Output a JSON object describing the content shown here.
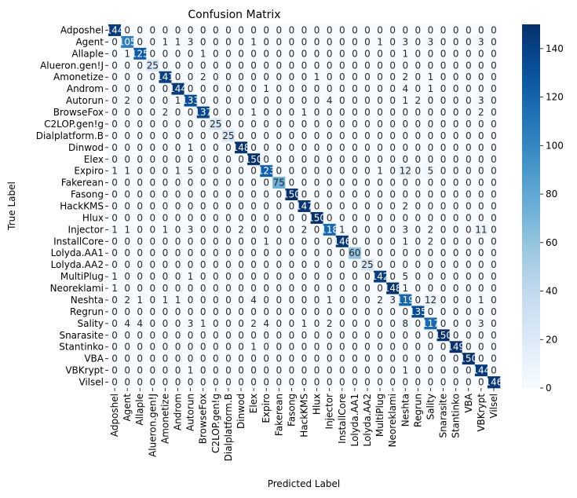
{
  "chart_data": {
    "type": "heatmap",
    "title": "Confusion Matrix",
    "xlabel": "Predicted Label",
    "ylabel": "True Label",
    "labels": [
      "Adposhel",
      "Agent",
      "Allaple",
      "Alueron.gen!J",
      "Amonetize",
      "Androm",
      "Autorun",
      "BrowseFox",
      "C2LOP.gen!g",
      "Dialplatform.B",
      "Dinwod",
      "Elex",
      "Expiro",
      "Fakerean",
      "Fasong",
      "HackKMS",
      "Hlux",
      "Injector",
      "InstallCore",
      "Lolyda.AA1",
      "Lolyda.AA2",
      "MultiPlug",
      "Neoreklami",
      "Neshta",
      "Regrun",
      "Sality",
      "Snarasite",
      "Stantinko",
      "VBA",
      "VBKrypt",
      "Vilsel"
    ],
    "matrix": [
      [
        144,
        0,
        0,
        0,
        0,
        0,
        0,
        0,
        0,
        0,
        0,
        0,
        0,
        0,
        0,
        0,
        0,
        0,
        0,
        0,
        0,
        0,
        0,
        0,
        0,
        0,
        0,
        0,
        0,
        0,
        0
      ],
      [
        0,
        105,
        0,
        0,
        1,
        1,
        3,
        0,
        0,
        0,
        0,
        1,
        0,
        0,
        0,
        0,
        0,
        0,
        0,
        0,
        0,
        1,
        0,
        3,
        0,
        3,
        0,
        0,
        0,
        3,
        0
      ],
      [
        0,
        1,
        125,
        0,
        0,
        0,
        0,
        1,
        0,
        0,
        0,
        0,
        0,
        0,
        0,
        0,
        0,
        0,
        0,
        0,
        0,
        0,
        0,
        1,
        0,
        0,
        0,
        0,
        0,
        0,
        0
      ],
      [
        0,
        0,
        0,
        25,
        0,
        0,
        0,
        0,
        0,
        0,
        0,
        0,
        0,
        0,
        0,
        0,
        0,
        0,
        0,
        0,
        0,
        0,
        0,
        0,
        0,
        0,
        0,
        0,
        0,
        0,
        0
      ],
      [
        0,
        0,
        0,
        0,
        141,
        0,
        0,
        2,
        0,
        0,
        0,
        0,
        0,
        0,
        0,
        0,
        1,
        0,
        0,
        0,
        0,
        0,
        0,
        2,
        0,
        1,
        0,
        0,
        0,
        0,
        0
      ],
      [
        0,
        0,
        0,
        0,
        0,
        144,
        0,
        0,
        0,
        0,
        0,
        0,
        1,
        0,
        0,
        0,
        0,
        0,
        0,
        0,
        0,
        0,
        0,
        4,
        0,
        1,
        0,
        0,
        0,
        0,
        0
      ],
      [
        0,
        2,
        0,
        0,
        0,
        1,
        133,
        0,
        0,
        0,
        0,
        0,
        0,
        0,
        0,
        0,
        0,
        4,
        0,
        0,
        0,
        0,
        0,
        1,
        2,
        0,
        0,
        0,
        0,
        3,
        0
      ],
      [
        0,
        0,
        0,
        0,
        2,
        0,
        0,
        137,
        0,
        0,
        0,
        1,
        0,
        0,
        0,
        1,
        0,
        0,
        0,
        0,
        0,
        0,
        0,
        0,
        0,
        0,
        0,
        0,
        0,
        2,
        0
      ],
      [
        0,
        0,
        0,
        0,
        0,
        0,
        0,
        0,
        25,
        0,
        0,
        0,
        0,
        0,
        0,
        0,
        0,
        0,
        0,
        0,
        0,
        0,
        0,
        0,
        0,
        0,
        0,
        0,
        0,
        0,
        0
      ],
      [
        0,
        0,
        0,
        0,
        0,
        0,
        0,
        0,
        0,
        25,
        0,
        0,
        0,
        0,
        0,
        0,
        0,
        0,
        0,
        0,
        0,
        0,
        0,
        0,
        0,
        0,
        0,
        0,
        0,
        0,
        0
      ],
      [
        0,
        0,
        0,
        0,
        0,
        0,
        1,
        0,
        0,
        0,
        148,
        0,
        0,
        0,
        0,
        0,
        0,
        0,
        0,
        0,
        0,
        0,
        0,
        0,
        0,
        0,
        0,
        0,
        0,
        0,
        0
      ],
      [
        0,
        0,
        0,
        0,
        0,
        0,
        0,
        0,
        0,
        0,
        0,
        150,
        0,
        0,
        0,
        0,
        0,
        0,
        0,
        0,
        0,
        0,
        0,
        0,
        0,
        0,
        0,
        0,
        0,
        0,
        0
      ],
      [
        1,
        1,
        0,
        0,
        0,
        1,
        5,
        0,
        0,
        0,
        0,
        0,
        123,
        0,
        0,
        0,
        0,
        0,
        0,
        0,
        0,
        1,
        0,
        12,
        0,
        5,
        0,
        0,
        0,
        0,
        0
      ],
      [
        0,
        0,
        0,
        0,
        0,
        0,
        0,
        0,
        0,
        0,
        0,
        0,
        0,
        75,
        0,
        0,
        0,
        0,
        0,
        0,
        0,
        0,
        0,
        0,
        0,
        0,
        0,
        0,
        0,
        0,
        0
      ],
      [
        0,
        0,
        0,
        0,
        0,
        0,
        0,
        0,
        0,
        0,
        0,
        0,
        0,
        0,
        150,
        0,
        0,
        0,
        0,
        0,
        0,
        0,
        0,
        0,
        0,
        0,
        0,
        0,
        0,
        0,
        0
      ],
      [
        0,
        0,
        0,
        0,
        0,
        0,
        0,
        0,
        0,
        0,
        0,
        0,
        0,
        0,
        0,
        147,
        0,
        0,
        0,
        0,
        0,
        0,
        0,
        2,
        0,
        0,
        0,
        0,
        0,
        0,
        0
      ],
      [
        0,
        0,
        0,
        0,
        0,
        0,
        0,
        0,
        0,
        0,
        0,
        0,
        0,
        0,
        0,
        0,
        150,
        0,
        0,
        0,
        0,
        0,
        0,
        0,
        0,
        0,
        0,
        0,
        0,
        0,
        0
      ],
      [
        1,
        1,
        0,
        0,
        1,
        0,
        3,
        0,
        0,
        0,
        2,
        0,
        0,
        0,
        0,
        2,
        0,
        118,
        1,
        0,
        0,
        0,
        0,
        3,
        0,
        2,
        0,
        0,
        0,
        11,
        0
      ],
      [
        0,
        0,
        0,
        0,
        0,
        0,
        0,
        0,
        0,
        0,
        0,
        0,
        1,
        0,
        0,
        0,
        0,
        0,
        146,
        0,
        0,
        0,
        0,
        1,
        0,
        2,
        0,
        0,
        0,
        0,
        0
      ],
      [
        0,
        0,
        0,
        0,
        0,
        0,
        0,
        0,
        0,
        0,
        0,
        0,
        0,
        0,
        0,
        0,
        0,
        0,
        0,
        60,
        0,
        0,
        0,
        0,
        0,
        0,
        0,
        0,
        0,
        0,
        0
      ],
      [
        0,
        0,
        0,
        0,
        0,
        0,
        0,
        0,
        0,
        0,
        0,
        0,
        0,
        0,
        0,
        0,
        0,
        0,
        0,
        0,
        25,
        0,
        0,
        0,
        0,
        0,
        0,
        0,
        0,
        0,
        0
      ],
      [
        1,
        0,
        0,
        0,
        0,
        0,
        1,
        0,
        0,
        0,
        0,
        0,
        0,
        0,
        0,
        0,
        0,
        0,
        0,
        0,
        0,
        142,
        0,
        5,
        0,
        0,
        0,
        0,
        0,
        0,
        0
      ],
      [
        1,
        0,
        0,
        0,
        0,
        0,
        0,
        0,
        0,
        0,
        0,
        0,
        0,
        0,
        0,
        0,
        0,
        0,
        0,
        0,
        0,
        0,
        148,
        1,
        0,
        0,
        0,
        0,
        0,
        0,
        0
      ],
      [
        0,
        2,
        1,
        0,
        1,
        1,
        0,
        0,
        0,
        0,
        0,
        4,
        0,
        0,
        0,
        0,
        0,
        1,
        0,
        0,
        0,
        2,
        3,
        119,
        0,
        12,
        0,
        0,
        0,
        1,
        0
      ],
      [
        0,
        0,
        0,
        0,
        0,
        0,
        0,
        0,
        0,
        0,
        0,
        0,
        0,
        0,
        0,
        0,
        0,
        0,
        0,
        0,
        0,
        0,
        0,
        0,
        135,
        0,
        0,
        0,
        0,
        0,
        0
      ],
      [
        0,
        4,
        4,
        0,
        0,
        0,
        3,
        1,
        0,
        0,
        0,
        2,
        4,
        0,
        0,
        1,
        0,
        2,
        0,
        0,
        0,
        0,
        0,
        8,
        0,
        117,
        0,
        0,
        0,
        3,
        0
      ],
      [
        0,
        0,
        0,
        0,
        0,
        0,
        0,
        0,
        0,
        0,
        0,
        0,
        0,
        0,
        0,
        0,
        0,
        0,
        0,
        0,
        0,
        0,
        0,
        0,
        0,
        0,
        150,
        0,
        0,
        0,
        0
      ],
      [
        0,
        0,
        0,
        0,
        0,
        0,
        0,
        0,
        0,
        0,
        0,
        1,
        0,
        0,
        0,
        0,
        0,
        0,
        0,
        0,
        0,
        0,
        0,
        0,
        0,
        0,
        0,
        149,
        0,
        0,
        0
      ],
      [
        0,
        0,
        0,
        0,
        0,
        0,
        0,
        0,
        0,
        0,
        0,
        0,
        0,
        0,
        0,
        0,
        0,
        0,
        0,
        0,
        0,
        0,
        0,
        0,
        0,
        0,
        0,
        0,
        150,
        0,
        0
      ],
      [
        0,
        0,
        0,
        0,
        0,
        0,
        1,
        0,
        0,
        0,
        0,
        0,
        0,
        0,
        0,
        0,
        0,
        0,
        0,
        0,
        0,
        0,
        0,
        1,
        0,
        0,
        0,
        0,
        0,
        144,
        0
      ],
      [
        0,
        0,
        0,
        0,
        0,
        0,
        0,
        0,
        0,
        0,
        0,
        0,
        0,
        0,
        0,
        0,
        0,
        0,
        0,
        0,
        0,
        0,
        0,
        0,
        0,
        0,
        0,
        0,
        0,
        0,
        146
      ]
    ],
    "colorbar": {
      "vmin": 0,
      "vmax": 150,
      "ticks": [
        0,
        20,
        40,
        60,
        80,
        100,
        120,
        140
      ]
    },
    "colormap": "Blues",
    "grid": false,
    "legend": "colorbar-right"
  }
}
